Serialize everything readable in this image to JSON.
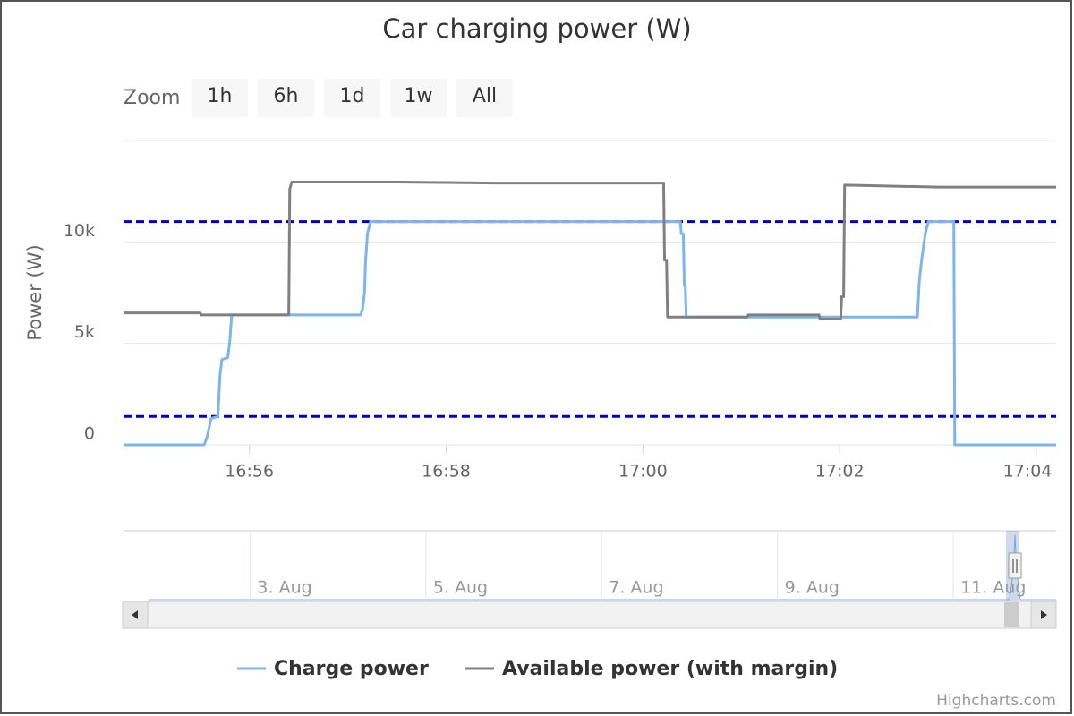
{
  "chart_data": {
    "type": "line",
    "title": "Car charging power (W)",
    "zoom_label": "Zoom",
    "zoom_buttons": [
      "1h",
      "6h",
      "1d",
      "1w",
      "All"
    ],
    "y_axis_label": "Power (W)",
    "xlim": [
      1014.72,
      1024.2
    ],
    "xticks": [
      {
        "value": 1016,
        "label": "16:56"
      },
      {
        "value": 1018,
        "label": "16:58"
      },
      {
        "value": 1020,
        "label": "17:00"
      },
      {
        "value": 1022,
        "label": "17:02"
      },
      {
        "value": 1024,
        "label": "17:04"
      }
    ],
    "ylim": [
      0,
      15000
    ],
    "yticks": [
      0,
      {
        "value": 5000,
        "label": "5k"
      },
      {
        "value": 10000,
        "label": "10k"
      }
    ],
    "grid": true,
    "plot_lines": [
      {
        "value": 11000,
        "color": "#0000cc"
      },
      {
        "value": 1400,
        "color": "#0000cc"
      }
    ],
    "series": [
      {
        "name": "Charge power",
        "color": "#7cb5ec",
        "x": [
          1014.72,
          1015.54,
          1015.57,
          1015.61,
          1015.68,
          1015.7,
          1015.72,
          1015.78,
          1015.8,
          1015.82,
          1017.13,
          1017.15,
          1017.17,
          1017.18,
          1017.2,
          1017.23,
          1020.38,
          1020.39,
          1020.41,
          1020.42,
          1020.43,
          1020.44,
          1022.79,
          1022.81,
          1022.83,
          1022.87,
          1022.9,
          1023.16,
          1023.17,
          1024.2
        ],
        "values": [
          0,
          0,
          400,
          1300,
          1400,
          3400,
          4200,
          4300,
          5100,
          6400,
          6400,
          6700,
          7500,
          9000,
          10400,
          11000,
          11000,
          10400,
          10400,
          7900,
          7900,
          6300,
          6300,
          8100,
          9000,
          10400,
          11000,
          11000,
          0,
          0
        ]
      },
      {
        "name": "Available power (with margin)",
        "color": "#808080",
        "x": [
          1014.72,
          1015.5,
          1015.51,
          1016.4,
          1016.41,
          1016.43,
          1017.5,
          1018.5,
          1020.21,
          1020.22,
          1020.24,
          1020.25,
          1021.06,
          1021.07,
          1021.79,
          1021.8,
          1022.01,
          1022.02,
          1022.04,
          1022.05,
          1023.0,
          1024.2
        ],
        "values": [
          6500,
          6500,
          6400,
          6400,
          12600,
          12950,
          12950,
          12900,
          12900,
          9100,
          9100,
          6300,
          6300,
          6400,
          6400,
          6200,
          6200,
          7300,
          7300,
          12800,
          12700,
          12700
        ]
      }
    ],
    "navigator": {
      "xlim": [
        1.56,
        12.17
      ],
      "xticks": [
        {
          "value": 3,
          "label": "3. Aug"
        },
        {
          "value": 5,
          "label": "5. Aug"
        },
        {
          "value": 7,
          "label": "7. Aug"
        },
        {
          "value": 9,
          "label": "9. Aug"
        },
        {
          "value": 11,
          "label": "11. Aug"
        }
      ]
    },
    "credits": "Highcharts.com"
  }
}
